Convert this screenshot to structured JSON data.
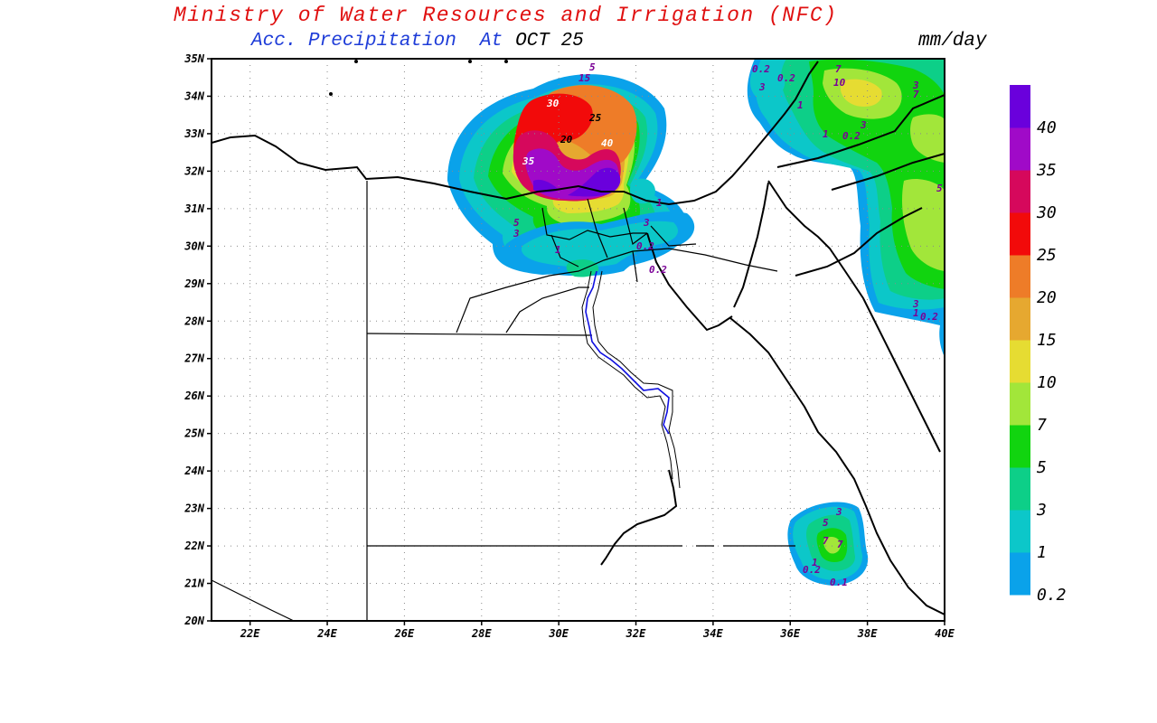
{
  "title": "Ministry of Water Resources and Irrigation (NFC)",
  "subtitle": {
    "product": "Acc. Precipitation",
    "at_label": "At",
    "date": "OCT 25"
  },
  "units": "mm/day",
  "map_extent": {
    "lon_min": 21,
    "lon_max": 40,
    "lat_min": 20,
    "lat_max": 35
  },
  "grid": "dotted",
  "axes": {
    "x_ticks": [
      "22E",
      "24E",
      "26E",
      "28E",
      "30E",
      "32E",
      "34E",
      "36E",
      "38E",
      "40E"
    ],
    "y_ticks": [
      "20N",
      "21N",
      "22N",
      "23N",
      "24N",
      "25N",
      "26N",
      "27N",
      "28N",
      "29N",
      "30N",
      "31N",
      "32N",
      "33N",
      "34N",
      "35N"
    ]
  },
  "legend": {
    "placement": "right",
    "bins": [
      {
        "label": "0.2",
        "color": "#0aa2ea"
      },
      {
        "label": "1",
        "color": "#0cc7c9"
      },
      {
        "label": "3",
        "color": "#0dcf88"
      },
      {
        "label": "5",
        "color": "#11d40f"
      },
      {
        "label": "7",
        "color": "#a2e63a"
      },
      {
        "label": "10",
        "color": "#e6dc32"
      },
      {
        "label": "15",
        "color": "#e6a830"
      },
      {
        "label": "20",
        "color": "#ee7c28"
      },
      {
        "label": "25",
        "color": "#f20a0a"
      },
      {
        "label": "30",
        "color": "#d6085c"
      },
      {
        "label": "35",
        "color": "#a00ac8"
      },
      {
        "label": "40",
        "color": "#6a00dc"
      }
    ]
  },
  "contour_labels": {
    "north_storm": [
      "5",
      "15",
      "20",
      "25",
      "30",
      "35",
      "40",
      "5",
      "3",
      "1"
    ],
    "northeast": [
      "0.2",
      "3",
      "0.2",
      "1",
      "7",
      "10",
      "3",
      "1",
      "0.2",
      "3",
      "7",
      "5",
      "3",
      "1",
      "0.2"
    ],
    "south": [
      "3",
      "5",
      "7",
      "7",
      "1",
      "0.2",
      "0.1"
    ],
    "delta": [
      "1",
      "3",
      "0.2",
      "0.2"
    ]
  }
}
